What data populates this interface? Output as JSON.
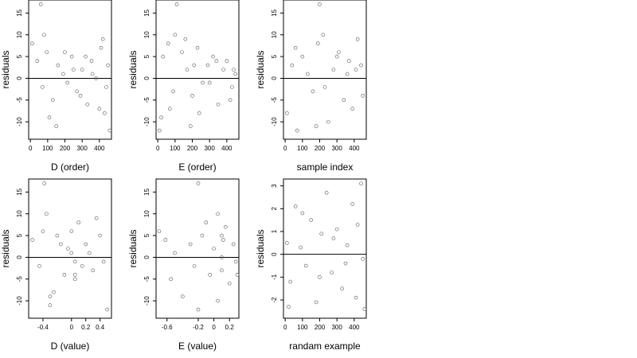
{
  "chart_data": [
    {
      "type": "scatter",
      "xlabel": "D (order)",
      "ylabel": "residuals",
      "xlim": [
        -10,
        470
      ],
      "ylim": [
        -14,
        18
      ],
      "xticks": [
        0,
        100,
        200,
        300,
        400
      ],
      "yticks": [
        -10,
        -5,
        0,
        5,
        10,
        15
      ],
      "hline": 0,
      "x": [
        10,
        40,
        70,
        95,
        130,
        160,
        190,
        215,
        240,
        270,
        300,
        330,
        355,
        380,
        410,
        430,
        450,
        460,
        60,
        80,
        110,
        150,
        200,
        250,
        290,
        320,
        360,
        400,
        420,
        440
      ],
      "y": [
        8,
        4,
        -2,
        6,
        -5,
        3,
        1,
        -1,
        5,
        -3,
        2,
        -6,
        4,
        0,
        7,
        -8,
        3,
        -12,
        17,
        10,
        -9,
        -11,
        6,
        2,
        -4,
        5,
        1,
        -7,
        9,
        -2
      ]
    },
    {
      "type": "scatter",
      "xlabel": "E (order)",
      "ylabel": "residuals",
      "xlim": [
        -10,
        470
      ],
      "ylim": [
        -14,
        18
      ],
      "xticks": [
        0,
        100,
        200,
        300,
        400
      ],
      "yticks": [
        -10,
        -5,
        0,
        5,
        10,
        15
      ],
      "hline": 0,
      "x": [
        10,
        30,
        60,
        90,
        110,
        140,
        170,
        200,
        230,
        260,
        290,
        320,
        350,
        380,
        400,
        430,
        450,
        20,
        100,
        190,
        210,
        240,
        300,
        340,
        420,
        440,
        160,
        70
      ],
      "y": [
        -12,
        5,
        8,
        -3,
        17,
        6,
        2,
        -4,
        7,
        -1,
        3,
        5,
        -6,
        2,
        4,
        -2,
        1,
        -9,
        10,
        -11,
        3,
        -8,
        -1,
        4,
        -5,
        2,
        9,
        -7
      ]
    },
    {
      "type": "scatter",
      "xlabel": "sample index",
      "ylabel": "residuals",
      "xlim": [
        -10,
        470
      ],
      "ylim": [
        -14,
        18
      ],
      "xticks": [
        0,
        100,
        200,
        300,
        400
      ],
      "yticks": [
        -10,
        -5,
        0,
        5,
        10,
        15
      ],
      "hline": 0,
      "x": [
        10,
        40,
        70,
        100,
        130,
        160,
        190,
        200,
        220,
        250,
        280,
        310,
        340,
        370,
        390,
        420,
        440,
        450,
        60,
        180,
        230,
        300,
        360,
        410
      ],
      "y": [
        -8,
        3,
        -12,
        5,
        1,
        -3,
        8,
        17,
        10,
        -10,
        2,
        6,
        -5,
        4,
        -7,
        9,
        3,
        -4,
        7,
        -11,
        -2,
        5,
        1,
        2
      ]
    },
    {
      "type": "scatter",
      "xlabel": "D (value)",
      "ylabel": "residuals",
      "xlim": [
        -0.6,
        0.56
      ],
      "ylim": [
        -14,
        18
      ],
      "xticks": [
        -0.4,
        0.0,
        0.2,
        0.4
      ],
      "yticks": [
        -10,
        -5,
        0,
        5,
        10,
        15
      ],
      "hline": 0,
      "x": [
        -0.55,
        -0.45,
        -0.38,
        -0.35,
        -0.3,
        -0.25,
        -0.2,
        -0.15,
        -0.1,
        -0.05,
        0.0,
        0.05,
        0.05,
        0.1,
        0.15,
        0.2,
        0.25,
        0.3,
        0.35,
        0.4,
        0.45,
        0.5,
        -0.4,
        -0.3,
        0.05,
        0.0
      ],
      "y": [
        4,
        -2,
        17,
        10,
        -11,
        -8,
        5,
        3,
        -4,
        2,
        6,
        -1,
        -5,
        8,
        -2,
        3,
        1,
        -3,
        9,
        5,
        -1,
        -12,
        6,
        -9,
        -4,
        1
      ]
    },
    {
      "type": "scatter",
      "xlabel": "E (value)",
      "ylabel": "residuals",
      "xlim": [
        -0.74,
        0.32
      ],
      "ylim": [
        -14,
        18
      ],
      "xticks": [
        -0.6,
        -0.2,
        0.0,
        0.2
      ],
      "yticks": [
        -10,
        -5,
        0,
        5,
        10,
        15
      ],
      "hline": 0,
      "x": [
        -0.7,
        -0.62,
        -0.55,
        -0.5,
        -0.4,
        -0.3,
        -0.25,
        -0.2,
        -0.15,
        -0.1,
        -0.05,
        0.0,
        0.05,
        0.1,
        0.1,
        0.12,
        0.15,
        0.2,
        0.25,
        0.28,
        -0.2,
        0.05,
        0.1,
        0.3
      ],
      "y": [
        6,
        4,
        -5,
        1,
        -9,
        3,
        -2,
        17,
        5,
        8,
        -4,
        2,
        -10,
        0,
        -3,
        4,
        7,
        -6,
        3,
        -1,
        -12,
        10,
        5,
        -4
      ]
    },
    {
      "type": "scatter",
      "xlabel": "randam example",
      "ylabel": "residuals",
      "xlim": [
        -10,
        470
      ],
      "ylim": [
        -2.8,
        3.3
      ],
      "xticks": [
        0,
        100,
        200,
        300,
        400
      ],
      "yticks": [
        -2,
        -1,
        0,
        1,
        2,
        3
      ],
      "hline": 0,
      "x": [
        10,
        30,
        60,
        90,
        120,
        150,
        180,
        210,
        240,
        270,
        300,
        330,
        360,
        390,
        410,
        440,
        450,
        20,
        100,
        200,
        280,
        350,
        420,
        460
      ],
      "y": [
        0.5,
        -1.2,
        2.1,
        0.3,
        -0.5,
        1.5,
        -2.1,
        0.9,
        2.7,
        -0.8,
        1.1,
        -1.5,
        0.4,
        2.2,
        -1.9,
        3.1,
        -0.2,
        -2.3,
        1.8,
        -1.0,
        0.7,
        -0.4,
        1.3,
        -2.4
      ]
    }
  ]
}
